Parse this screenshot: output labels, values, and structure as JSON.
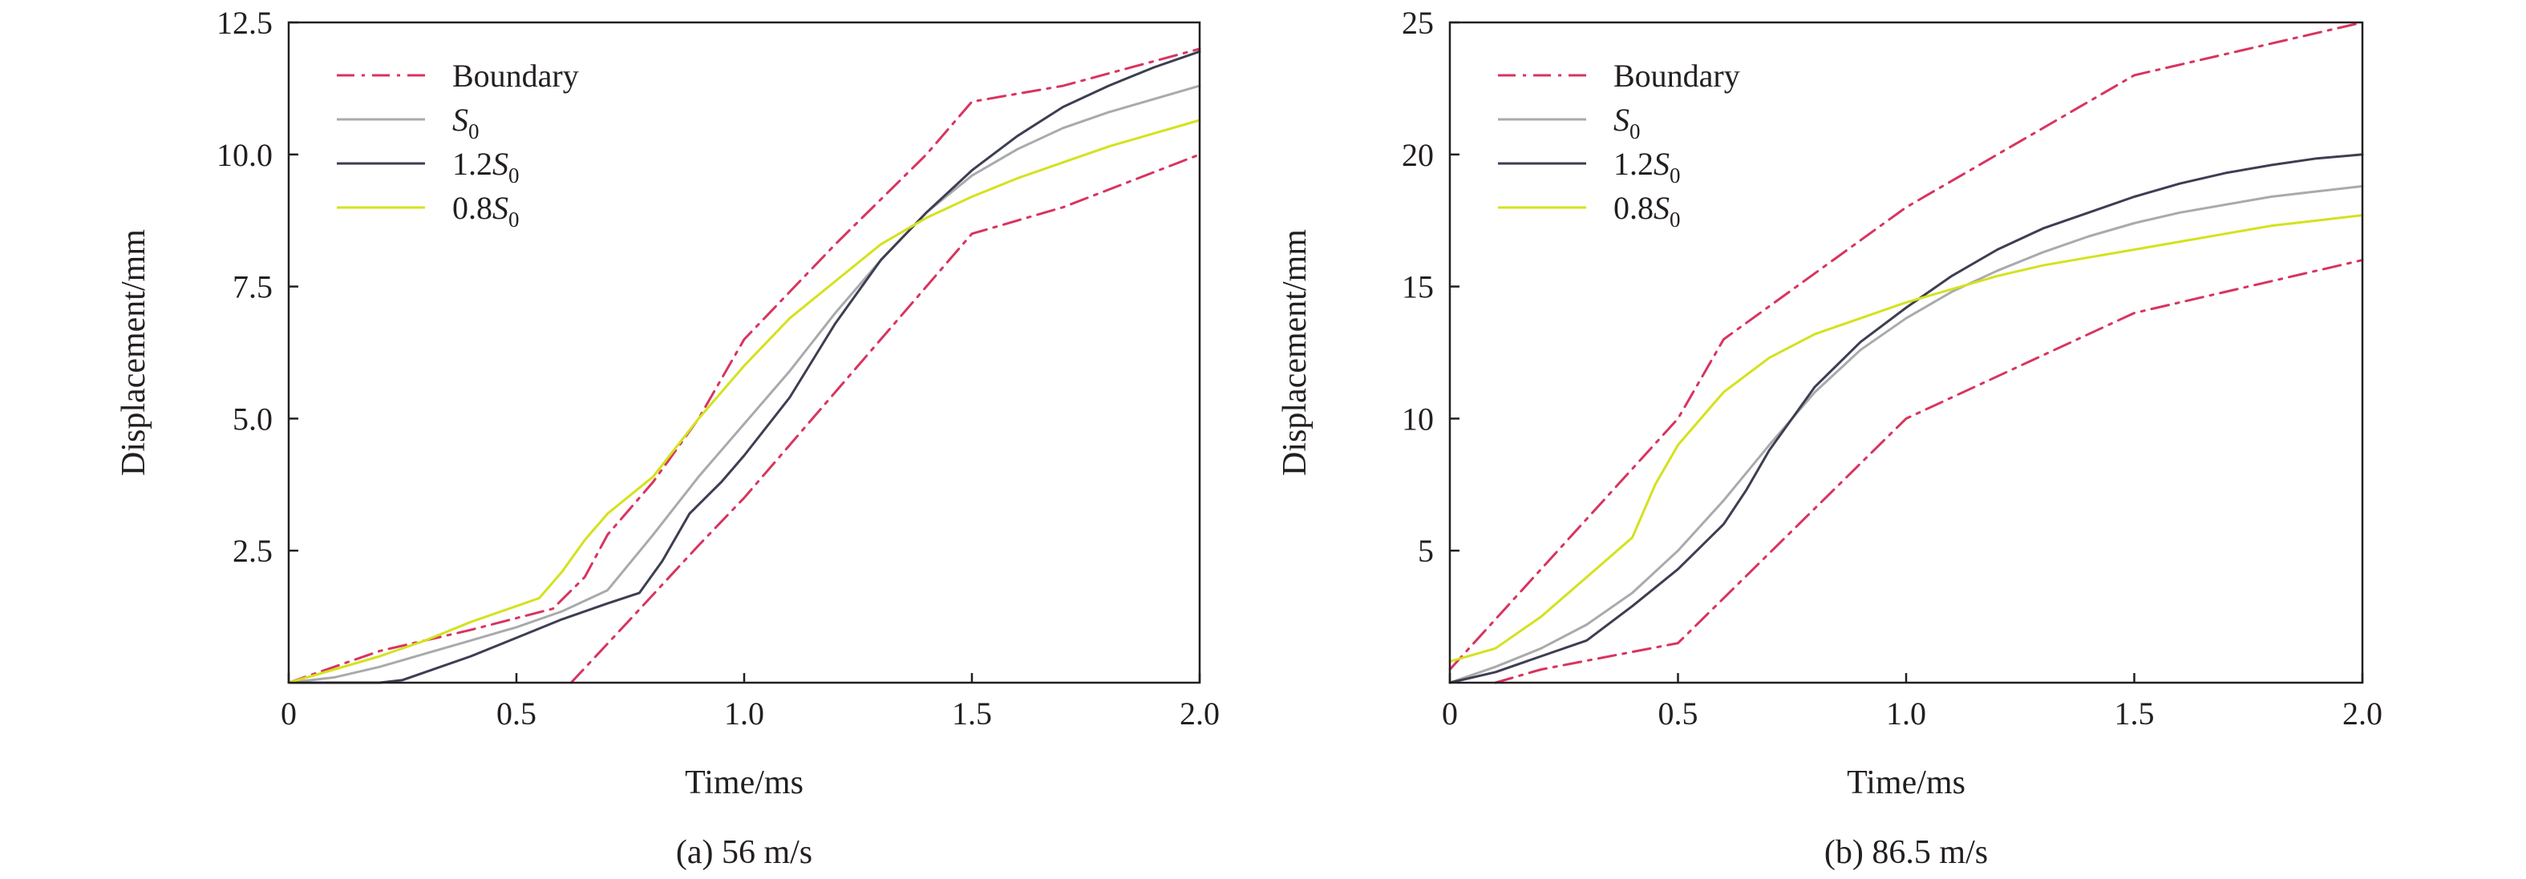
{
  "chart_data": [
    {
      "type": "line",
      "caption": "(a) 56 m/s",
      "xlabel": "Time/ms",
      "ylabel": "Displacement/mm",
      "xlim": [
        0,
        2.0
      ],
      "ylim": [
        0,
        12.5
      ],
      "xticks": [
        "0",
        "0.5",
        "1.0",
        "1.5",
        "2.0"
      ],
      "yticks": [
        "2.5",
        "5.0",
        "7.5",
        "10.0",
        "12.5"
      ],
      "legend_position": "top-left",
      "series": [
        {
          "name": "Boundary",
          "color": "#d8345f",
          "style": "dashdot",
          "x": [
            0,
            0.2,
            0.4,
            0.58,
            0.65,
            0.7,
            0.8,
            0.9,
            1.0,
            1.2,
            1.4,
            1.5,
            1.7,
            2.0
          ],
          "y": [
            0,
            0.6,
            1.0,
            1.4,
            2.0,
            2.8,
            3.8,
            5.0,
            6.5,
            8.3,
            10.0,
            11.0,
            11.3,
            12.0
          ]
        },
        {
          "name": "",
          "color": "#d8345f",
          "style": "dashdot",
          "x": [
            0.62,
            0.75,
            0.9,
            1.0,
            1.2,
            1.4,
            1.5,
            1.7,
            2.0
          ],
          "y": [
            0,
            1.2,
            2.6,
            3.5,
            5.5,
            7.5,
            8.5,
            9.0,
            10.0
          ]
        },
        {
          "name": "S0",
          "color": "#a9aaac",
          "style": "solid",
          "x": [
            0,
            0.1,
            0.2,
            0.3,
            0.4,
            0.5,
            0.6,
            0.7,
            0.8,
            0.9,
            1.0,
            1.1,
            1.2,
            1.3,
            1.4,
            1.5,
            1.6,
            1.7,
            1.8,
            1.9,
            2.0
          ],
          "y": [
            0,
            0.1,
            0.3,
            0.55,
            0.8,
            1.05,
            1.35,
            1.75,
            2.8,
            3.9,
            4.9,
            5.9,
            7.0,
            8.0,
            8.9,
            9.6,
            10.1,
            10.5,
            10.8,
            11.05,
            11.3
          ]
        },
        {
          "name": "1.2S0",
          "color": "#3d3e52",
          "style": "solid",
          "x": [
            0,
            0.2,
            0.25,
            0.3,
            0.4,
            0.5,
            0.6,
            0.7,
            0.77,
            0.82,
            0.88,
            0.95,
            1.0,
            1.1,
            1.2,
            1.3,
            1.4,
            1.5,
            1.6,
            1.7,
            1.8,
            1.9,
            2.0
          ],
          "y": [
            0,
            0,
            0.05,
            0.2,
            0.5,
            0.85,
            1.2,
            1.5,
            1.7,
            2.3,
            3.2,
            3.8,
            4.3,
            5.4,
            6.8,
            8.0,
            8.9,
            9.7,
            10.35,
            10.9,
            11.3,
            11.65,
            11.95
          ]
        },
        {
          "name": "0.8S0",
          "color": "#d4e21c",
          "style": "solid",
          "x": [
            0,
            0.1,
            0.2,
            0.3,
            0.4,
            0.5,
            0.55,
            0.6,
            0.65,
            0.7,
            0.8,
            0.9,
            1.0,
            1.1,
            1.2,
            1.3,
            1.4,
            1.5,
            1.6,
            1.7,
            1.8,
            1.9,
            2.0
          ],
          "y": [
            0,
            0.25,
            0.5,
            0.8,
            1.15,
            1.45,
            1.6,
            2.1,
            2.7,
            3.2,
            3.9,
            5.0,
            6.0,
            6.9,
            7.6,
            8.3,
            8.8,
            9.2,
            9.55,
            9.85,
            10.15,
            10.4,
            10.65
          ]
        }
      ]
    },
    {
      "type": "line",
      "caption": "(b) 86.5 m/s",
      "xlabel": "Time/ms",
      "ylabel": "Displacement/mm",
      "xlim": [
        0,
        2.0
      ],
      "ylim": [
        0,
        25
      ],
      "xticks": [
        "0",
        "0.5",
        "1.0",
        "1.5",
        "2.0"
      ],
      "yticks": [
        "5",
        "10",
        "15",
        "20",
        "25"
      ],
      "legend_position": "top-left",
      "series": [
        {
          "name": "Boundary",
          "color": "#d8345f",
          "style": "dashdot",
          "x": [
            0,
            0.5,
            0.6,
            1.0,
            1.5,
            2.0
          ],
          "y": [
            0.5,
            10.0,
            13.0,
            18.0,
            23.0,
            25.0
          ]
        },
        {
          "name": "",
          "color": "#d8345f",
          "style": "dashdot",
          "x": [
            0.1,
            0.2,
            0.5,
            1.0,
            1.5,
            2.0
          ],
          "y": [
            0,
            0.5,
            1.5,
            10.0,
            14.0,
            16.0
          ]
        },
        {
          "name": "S0",
          "color": "#a9aaac",
          "style": "solid",
          "x": [
            0,
            0.1,
            0.2,
            0.3,
            0.4,
            0.5,
            0.6,
            0.7,
            0.8,
            0.9,
            1.0,
            1.1,
            1.2,
            1.3,
            1.4,
            1.5,
            1.6,
            1.7,
            1.8,
            1.9,
            2.0
          ],
          "y": [
            0,
            0.6,
            1.3,
            2.2,
            3.4,
            5.0,
            6.9,
            9.0,
            11.0,
            12.6,
            13.8,
            14.8,
            15.6,
            16.3,
            16.9,
            17.4,
            17.8,
            18.1,
            18.4,
            18.6,
            18.8
          ]
        },
        {
          "name": "1.2S0",
          "color": "#3d3e52",
          "style": "solid",
          "x": [
            0,
            0.1,
            0.2,
            0.3,
            0.4,
            0.5,
            0.6,
            0.65,
            0.7,
            0.8,
            0.9,
            1.0,
            1.1,
            1.2,
            1.3,
            1.4,
            1.5,
            1.6,
            1.7,
            1.8,
            1.9,
            2.0
          ],
          "y": [
            0,
            0.4,
            1.0,
            1.6,
            2.9,
            4.3,
            6.0,
            7.3,
            8.8,
            11.2,
            12.9,
            14.2,
            15.4,
            16.4,
            17.2,
            17.8,
            18.4,
            18.9,
            19.3,
            19.6,
            19.85,
            20.0
          ]
        },
        {
          "name": "0.8S0",
          "color": "#d4e21c",
          "style": "solid",
          "x": [
            0,
            0.1,
            0.2,
            0.3,
            0.4,
            0.45,
            0.5,
            0.6,
            0.7,
            0.8,
            0.9,
            1.0,
            1.1,
            1.2,
            1.3,
            1.4,
            1.5,
            1.6,
            1.7,
            1.8,
            1.9,
            2.0
          ],
          "y": [
            0.8,
            1.3,
            2.5,
            4.0,
            5.5,
            7.5,
            9.0,
            11.0,
            12.3,
            13.2,
            13.8,
            14.4,
            14.9,
            15.4,
            15.8,
            16.1,
            16.4,
            16.7,
            17.0,
            17.3,
            17.5,
            17.7
          ]
        }
      ]
    }
  ]
}
